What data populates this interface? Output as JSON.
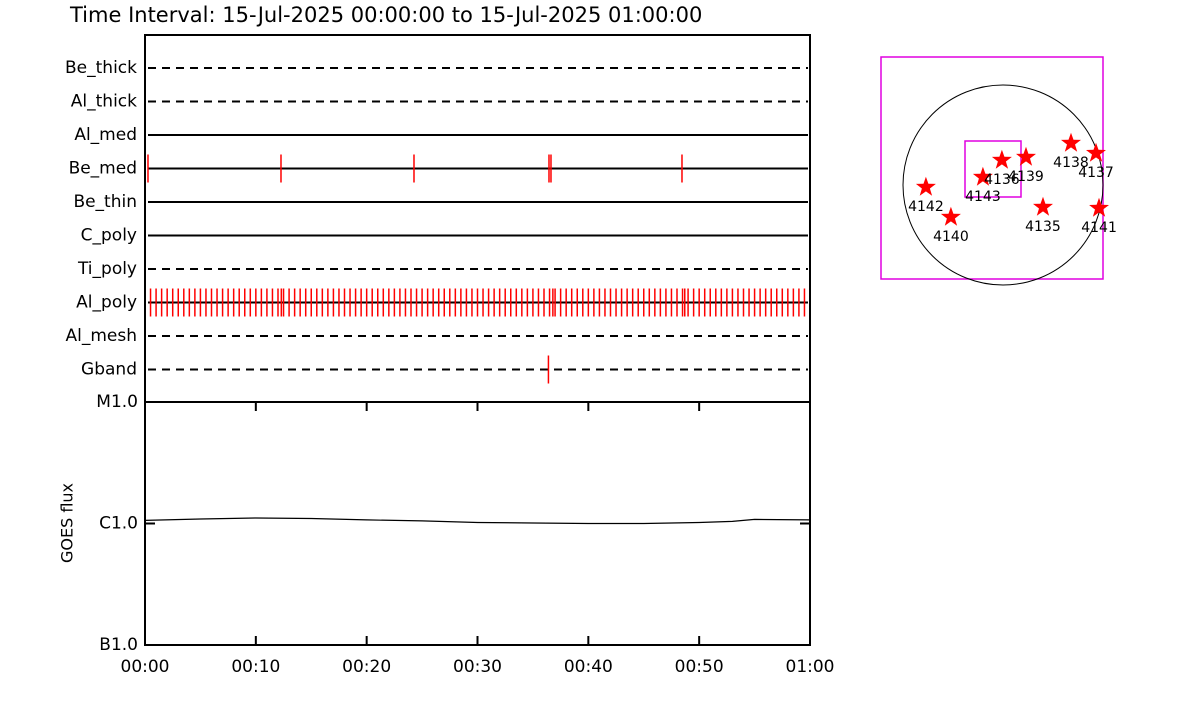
{
  "chart_data": [
    {
      "type": "timeline",
      "title": "Time Interval: 15-Jul-2025 00:00:00 to 15-Jul-2025 01:00:00",
      "xlim": [
        0,
        60
      ],
      "color": "#ff0000",
      "rows": [
        {
          "name": "Be_thick",
          "style": "dashed",
          "events": []
        },
        {
          "name": "Al_thick",
          "style": "dashed",
          "events": []
        },
        {
          "name": "Al_med",
          "style": "solid",
          "events": []
        },
        {
          "name": "Be_med",
          "style": "solid",
          "events": [
            0.27,
            12.27,
            24.27,
            36.45,
            36.63,
            48.45
          ]
        },
        {
          "name": "Be_thin",
          "style": "solid",
          "events": []
        },
        {
          "name": "C_poly",
          "style": "solid",
          "events": []
        },
        {
          "name": "Ti_poly",
          "style": "dashed",
          "events": []
        },
        {
          "name": "Al_poly",
          "style": "solid",
          "events": [
            0.5,
            1,
            1.5,
            2,
            2.5,
            3,
            3.5,
            4,
            4.5,
            5,
            5.5,
            6,
            6.5,
            7,
            7.5,
            8,
            8.5,
            9,
            9.5,
            10,
            10.5,
            11,
            11.5,
            12,
            12.3,
            12.5,
            13,
            13.5,
            14,
            14.5,
            15,
            15.5,
            16,
            16.5,
            17,
            17.5,
            18,
            18.5,
            19,
            19.5,
            20,
            20.5,
            21,
            21.5,
            22,
            22.5,
            23,
            23.5,
            24,
            24.5,
            25,
            25.5,
            26,
            26.5,
            27,
            27.5,
            28,
            28.5,
            29,
            29.5,
            30,
            30.5,
            31,
            31.5,
            32,
            32.5,
            33,
            33.5,
            34,
            34.5,
            35,
            35.5,
            36,
            36.5,
            36.8,
            37,
            37.5,
            38,
            38.5,
            39,
            39.5,
            40,
            40.5,
            41,
            41.5,
            42,
            42.5,
            43,
            43.5,
            44,
            44.5,
            45,
            45.5,
            46,
            46.5,
            47,
            47.5,
            48,
            48.5,
            48.7,
            49,
            49.5,
            50,
            50.5,
            51,
            51.5,
            52,
            52.5,
            53,
            53.5,
            54,
            54.5,
            55,
            55.5,
            56,
            56.5,
            57,
            57.5,
            58,
            58.5,
            59,
            59.5
          ]
        },
        {
          "name": "Al_mesh",
          "style": "dashed",
          "events": []
        },
        {
          "name": "Gband",
          "style": "dashed",
          "events": [
            36.4
          ]
        }
      ]
    },
    {
      "type": "line",
      "ylabel": "GOES flux",
      "log_scale": true,
      "color": "#000000",
      "x": [
        0,
        5,
        10,
        15,
        20,
        25,
        30,
        35,
        40,
        45,
        50,
        53,
        55,
        60
      ],
      "values": [
        1.06e-06,
        1.09e-06,
        1.11e-06,
        1.1e-06,
        1.07e-06,
        1.05e-06,
        1.02e-06,
        1.01e-06,
        1e-06,
        1e-06,
        1.02e-06,
        1.04e-06,
        1.08e-06,
        1.07e-06
      ],
      "xlim": [
        0,
        60
      ],
      "xticks": [
        {
          "value": 0,
          "label": "00:00"
        },
        {
          "value": 10,
          "label": "00:10"
        },
        {
          "value": 20,
          "label": "00:20"
        },
        {
          "value": 30,
          "label": "00:30"
        },
        {
          "value": 40,
          "label": "00:40"
        },
        {
          "value": 50,
          "label": "00:50"
        },
        {
          "value": 60,
          "label": "01:00"
        }
      ],
      "ylim": [
        1e-07,
        1e-05
      ],
      "yticks": [
        {
          "value": 1e-07,
          "label": "B1.0"
        },
        {
          "value": 1e-06,
          "label": "C1.0"
        },
        {
          "value": 1e-05,
          "label": "M1.0"
        }
      ]
    },
    {
      "type": "scatter",
      "color": "#ff0000",
      "xlim": [
        -1170,
        960
      ],
      "ylim": [
        -900,
        1230
      ],
      "labels": [
        "4142",
        "4140",
        "4143",
        "4136",
        "4139",
        "4138",
        "4137",
        "4135",
        "4141"
      ],
      "x": [
        -739,
        -499,
        -192,
        -10,
        221,
        653,
        893,
        384,
        922
      ],
      "y": [
        -19,
        -307,
        77,
        240,
        269,
        403,
        307,
        -211,
        -221
      ]
    }
  ]
}
